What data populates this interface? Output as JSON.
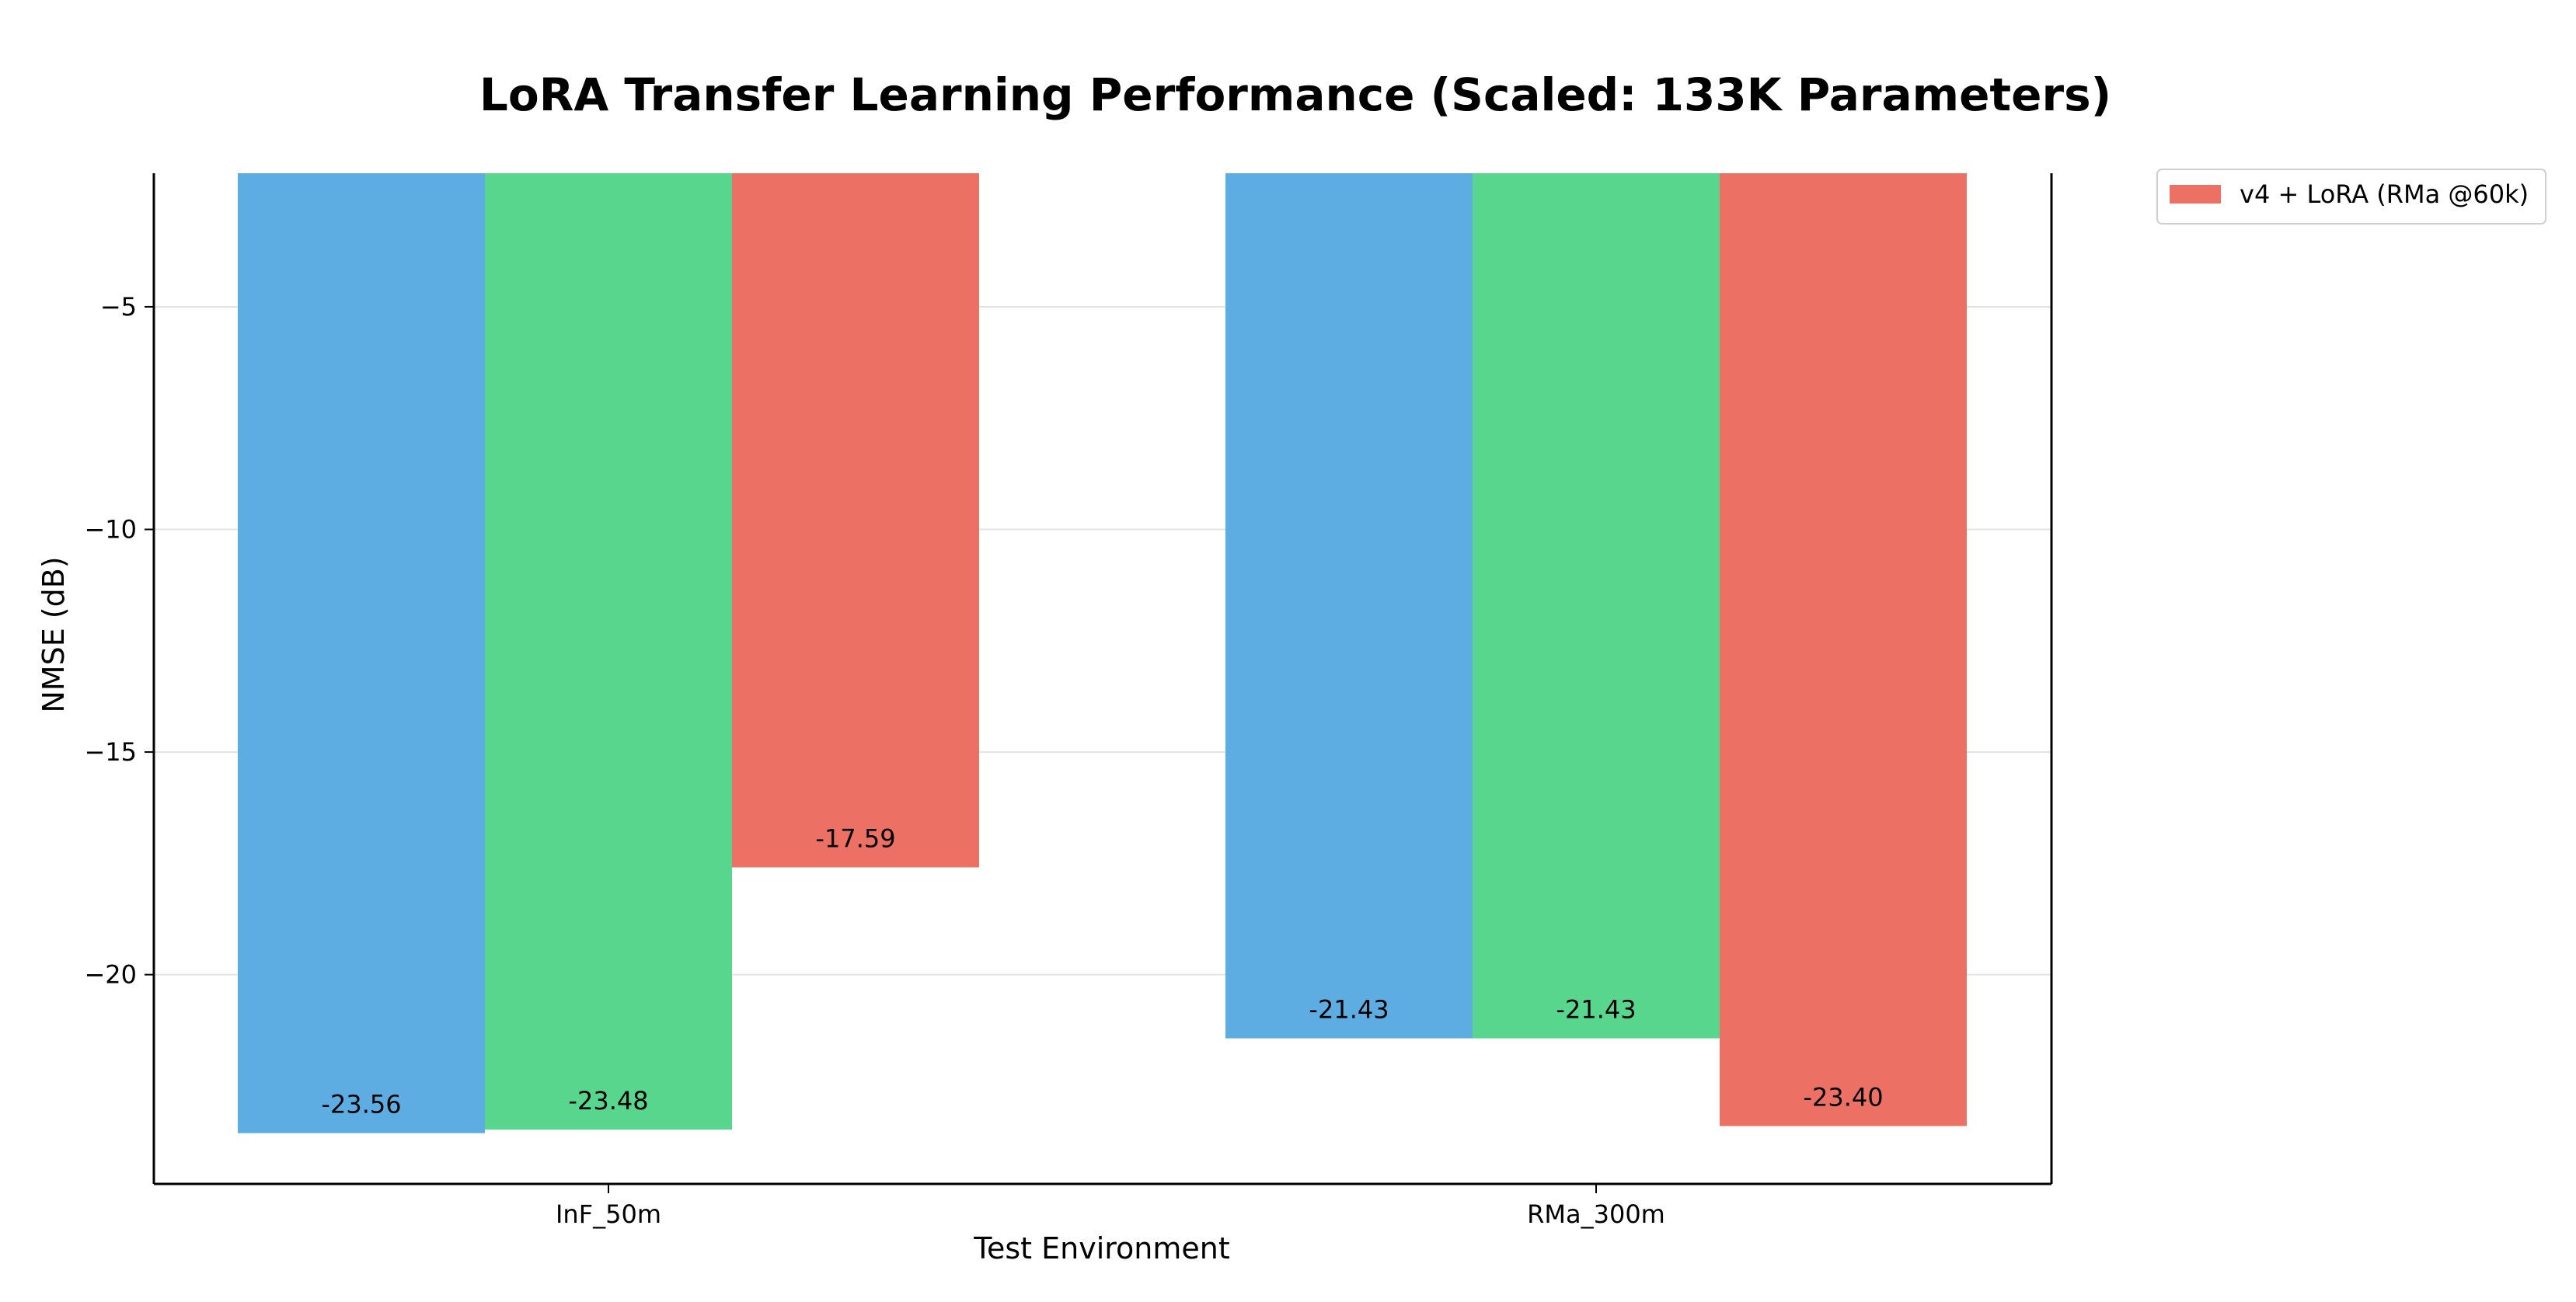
{
  "chart_data": {
    "type": "bar",
    "title": "LoRA Transfer Learning Performance (Scaled: 133K Parameters)",
    "xlabel": "Test Environment",
    "ylabel": "NMSE (dB)",
    "categories": [
      "InF_50m",
      "RMa_300m"
    ],
    "series": [
      {
        "values": [
          -23.56,
          -21.43
        ],
        "color": "#5DADE2",
        "labels": [
          "-23.56",
          "-21.43"
        ]
      },
      {
        "values": [
          -23.48,
          -21.43
        ],
        "color": "#58D68D",
        "labels": [
          "-23.48",
          "-21.43"
        ]
      },
      {
        "name": "v4 + LoRA (RMa @60k)",
        "values": [
          -17.59,
          -23.4
        ],
        "color": "#EC7063",
        "labels": [
          "-17.59",
          "-23.40"
        ]
      }
    ],
    "ylim": [
      -24.7,
      -2.0
    ],
    "yticks": [
      -5,
      -10,
      -15,
      -20
    ],
    "ytick_labels": [
      "−5",
      "−10",
      "−15",
      "−20"
    ],
    "grid": "horizontal",
    "legend": "outside-top-right"
  }
}
